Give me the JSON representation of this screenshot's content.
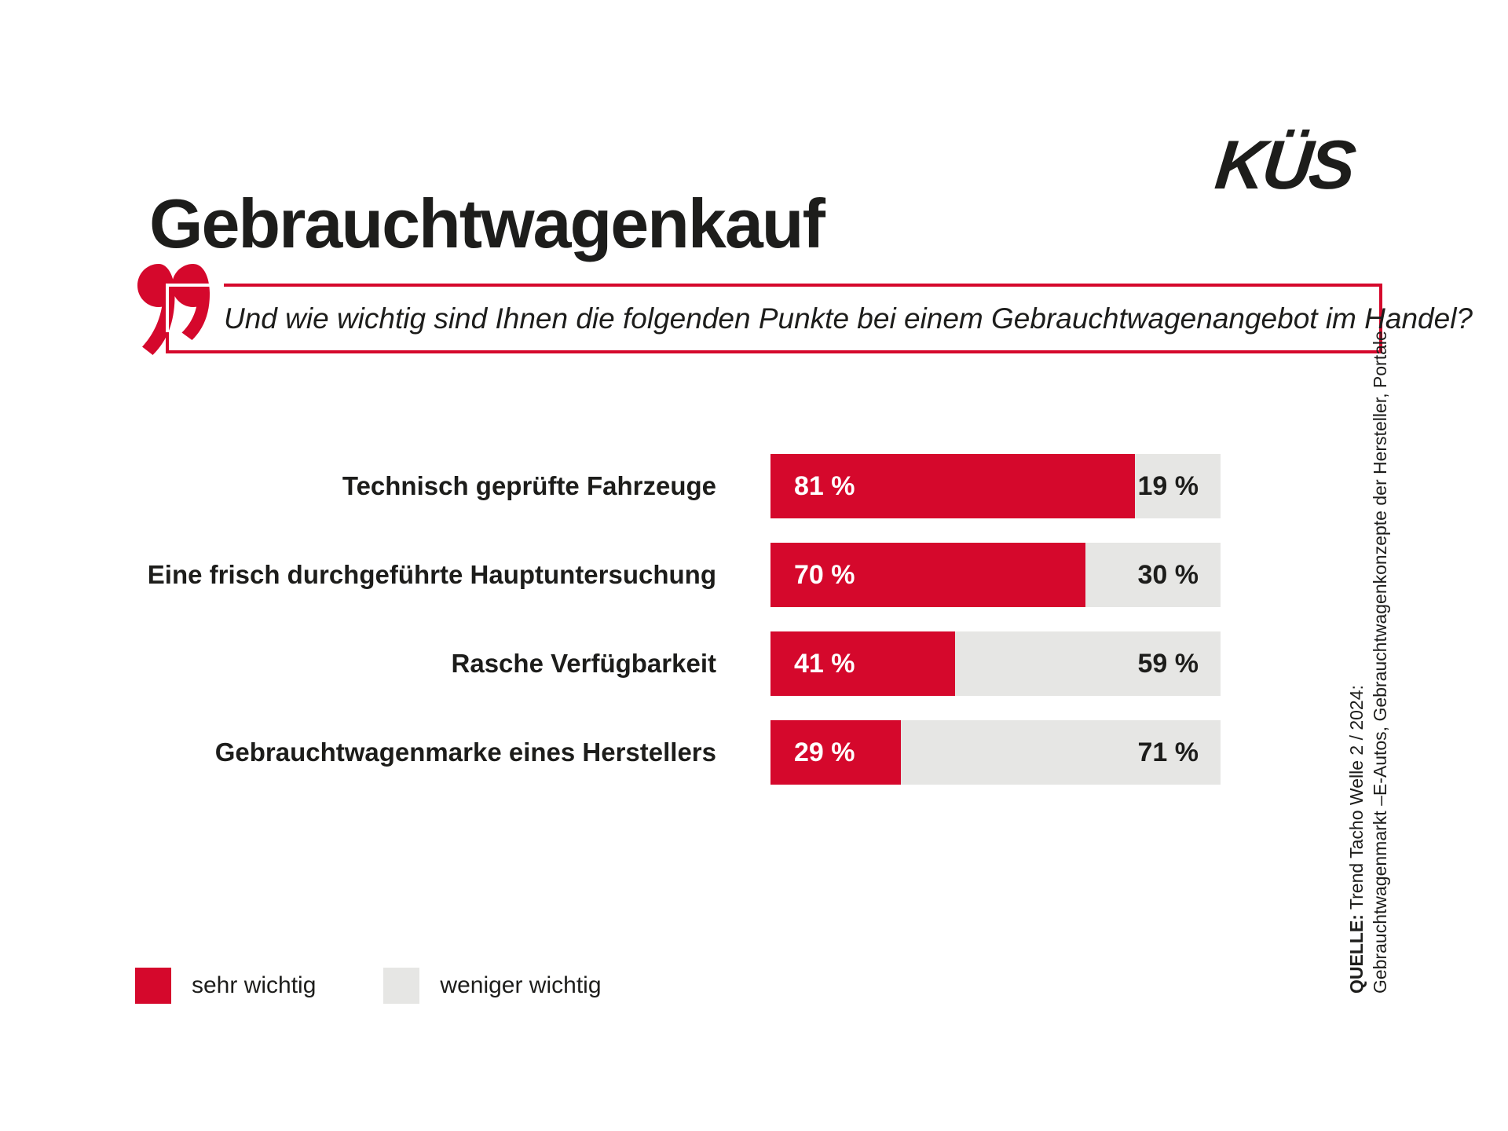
{
  "title": "Gebrauchtwagenkauf",
  "logo_text": "KÜS",
  "question": "Und wie wichtig sind Ihnen die folgenden Punkte bei einem Gebrauchtwagenangebot im Handel?",
  "colors": {
    "brand_red": "#d5082c",
    "light_gray": "#e6e6e4",
    "text_dark": "#1d1d1b"
  },
  "chart_data": {
    "type": "bar",
    "orientation": "horizontal",
    "stacked": true,
    "xlim": [
      0,
      100
    ],
    "unit": "%",
    "grid": false,
    "categories": [
      "Technisch geprüfte Fahrzeuge",
      "Eine frisch durchgeführte Hauptuntersuchung",
      "Rasche Verfügbarkeit",
      "Gebrauchtwagenmarke eines Herstellers"
    ],
    "series": [
      {
        "name": "sehr wichtig",
        "color": "#d5082c",
        "values": [
          81,
          70,
          41,
          29
        ],
        "value_labels": [
          "81 %",
          "70 %",
          "41 %",
          "29 %"
        ]
      },
      {
        "name": "weniger wichtig",
        "color": "#e6e6e4",
        "values": [
          19,
          30,
          59,
          71
        ],
        "value_labels": [
          "19 %",
          "30 %",
          "59 %",
          "71 %"
        ]
      }
    ],
    "legend_position": "bottom-left"
  },
  "legend": {
    "items": [
      {
        "label": "sehr wichtig",
        "color": "#d5082c"
      },
      {
        "label": "weniger wichtig",
        "color": "#e6e6e4"
      }
    ]
  },
  "source": {
    "prefix": "QUELLE:",
    "line1": " Trend Tacho Welle 2 / 2024:",
    "line2": "Gebrauchtwagenmarkt –E-Autos, Gebrauchtwagenkonzepte der Hersteller, Portale"
  }
}
